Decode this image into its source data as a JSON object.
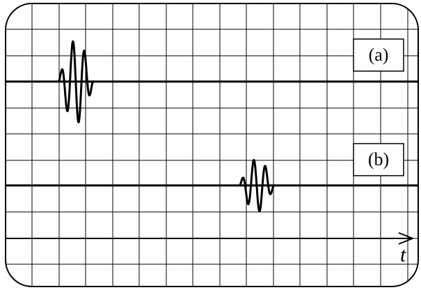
{
  "traces": [
    {
      "label": "(a)"
    },
    {
      "label": "(b)"
    }
  ],
  "axis": {
    "label": "t"
  },
  "colors": {
    "background": "#ffffff",
    "grid": "#000000",
    "trace": "#000000"
  }
}
